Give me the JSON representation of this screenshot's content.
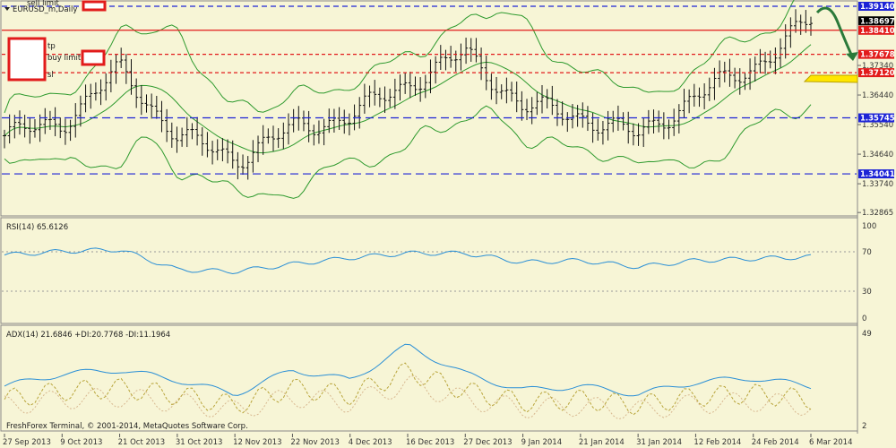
{
  "window": {
    "symbol_title": "EURUSD_m,Daily",
    "copyright": "FreshForex Terminal, © 2001-2014, MetaQuotes Software Corp."
  },
  "orders": [
    {
      "label": "sell limit",
      "price": "1.39140"
    },
    {
      "label": "tp",
      "price": "1.38410"
    },
    {
      "label": "buy limit",
      "price": "1.37678"
    },
    {
      "label": "sl",
      "price": "1.37120"
    }
  ],
  "price_axis": {
    "ticks": [
      "1.37340",
      "1.36440",
      "1.35540",
      "1.34640",
      "1.33740",
      "1.32865"
    ]
  },
  "price_labels": [
    {
      "text": "1.39140",
      "bg": "#1d24d6",
      "fg": "#ffffff"
    },
    {
      "text": "1.38697",
      "bg": "#000000",
      "fg": "#ffffff"
    },
    {
      "text": "1.38410",
      "bg": "#e21b1b",
      "fg": "#ffffff"
    },
    {
      "text": "1.37678",
      "bg": "#e21b1b",
      "fg": "#ffffff"
    },
    {
      "text": "1.37120",
      "bg": "#e21b1b",
      "fg": "#ffffff"
    },
    {
      "text": "1.35745",
      "bg": "#1d24d6",
      "fg": "#ffffff"
    },
    {
      "text": "1.34041",
      "bg": "#1d24d6",
      "fg": "#ffffff"
    }
  ],
  "rsi": {
    "title": "RSI(14) 65.6126",
    "levels": [
      "100",
      "70",
      "30",
      "0"
    ]
  },
  "adx": {
    "title": "ADX(14) 21.6846 +DI:20.7768 -DI:11.1964",
    "levels": [
      "49",
      "2"
    ]
  },
  "colors": {
    "background": "#f7f5d6",
    "bands": "#2e9a2e",
    "rsi": "#2a8fd6",
    "adx": "#2a8fd6",
    "plus_di": "#b8a43a",
    "minus_di": "#d8b890",
    "level_blue": "#1d24d6",
    "level_red": "#e21b1b",
    "arrow": "#2b7a3a",
    "highlight": "#ffe600"
  },
  "chart_data": {
    "type": "line",
    "title": "EURUSD_m,Daily",
    "x": [
      "27 Sep 2013",
      "9 Oct 2013",
      "21 Oct 2013",
      "31 Oct 2013",
      "12 Nov 2013",
      "22 Nov 2013",
      "4 Dec 2013",
      "16 Dec 2013",
      "27 Dec 2013",
      "9 Jan 2014",
      "21 Jan 2014",
      "31 Jan 2014",
      "12 Feb 2014",
      "24 Feb 2014",
      "6 Mar 2014"
    ],
    "ylim": [
      1.3287,
      1.3914
    ],
    "series": [
      {
        "values": [
          1.352,
          1.356,
          1.372,
          1.352,
          1.345,
          1.354,
          1.358,
          1.368,
          1.377,
          1.361,
          1.358,
          1.352,
          1.364,
          1.373,
          1.387
        ]
      }
    ],
    "horizontal_levels": [
      1.3914,
      1.3841,
      1.37678,
      1.3712,
      1.35745,
      1.34041
    ],
    "rsi_values": [
      68,
      72,
      74,
      52,
      50,
      58,
      65,
      70,
      70,
      60,
      62,
      55,
      62,
      64,
      66
    ],
    "adx_values": [
      22,
      28,
      30,
      25,
      18,
      30,
      25,
      42,
      28,
      20,
      22,
      18,
      24,
      26,
      22
    ]
  }
}
